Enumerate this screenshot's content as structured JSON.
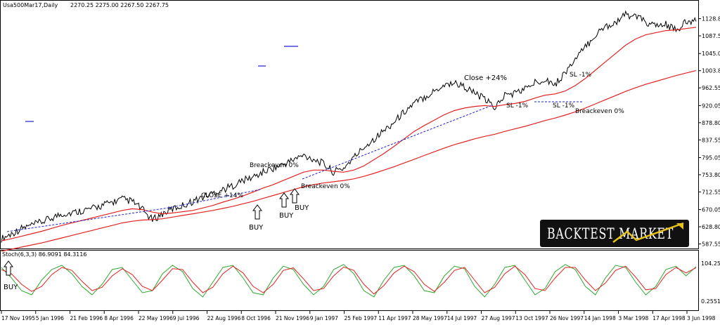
{
  "header": {
    "symbol": "Usa500Mar17,Daily",
    "ohlc": "2270.25 2275.00 2267.50 2267.75"
  },
  "stoch_label": "Stoch(6,3,3) 86.9091 84.3116",
  "logo": {
    "brand": "BACKTEST MARKET"
  },
  "colors": {
    "price": "#000000",
    "ma_fast": "#e32222",
    "ma_slow": "#e32222",
    "stoch_main": "#2ea82e",
    "stoch_signal": "#e32222",
    "trendline": "#1f1fd6",
    "logo_bg": "#111111",
    "logo_accent": "#e8c21a"
  },
  "chart_data": [
    {
      "type": "line",
      "title": "Usa500Mar17,Daily",
      "y_axis": {
        "ticks": [
          "1128.80",
          "1087.55",
          "1045.05",
          "1003.80",
          "962.55",
          "920.05",
          "878.80",
          "837.55",
          "795.05",
          "753.80",
          "712.55",
          "670.05",
          "628.80",
          "587.55"
        ],
        "ylim": [
          580,
          1150
        ]
      },
      "x_axis": {
        "ticks": [
          "17 Nov 1995",
          "5 Jan 1996",
          "21 Feb 1996",
          "8 Apr 1996",
          "22 May 1996",
          "9 Jul 1996",
          "22 Aug 1996",
          "8 Oct 1996",
          "21 Nov 1996",
          "9 Jan 1997",
          "25 Feb 1997",
          "11 Apr 1997",
          "28 May 1997",
          "14 Jul 1997",
          "27 Aug 1997",
          "13 Oct 1997",
          "26 Nov 1997",
          "14 Jan 1998",
          "3 Mar 1998",
          "17 Apr 1998",
          "3 Jun 1998"
        ]
      },
      "series": [
        {
          "values": [
            600,
            612,
            625,
            632,
            640,
            650,
            660,
            662,
            668,
            672,
            680,
            688,
            695,
            690,
            670,
            645,
            660,
            672,
            680,
            690,
            700,
            710,
            718,
            728,
            740,
            748,
            760,
            770,
            778,
            790,
            800,
            792,
            780,
            760,
            770,
            795,
            820,
            840,
            860,
            880,
            905,
            925,
            940,
            955,
            970,
            975,
            965,
            950,
            935,
            915,
            945,
            950,
            960,
            975,
            985,
            970,
            1000,
            1030,
            1060,
            1090,
            1110,
            1120,
            1138,
            1135,
            1120,
            1110,
            1115,
            1100,
            1120,
            1122
          ]
        },
        {
          "values": [
            595,
            600,
            606,
            612,
            618,
            625,
            632,
            638,
            644,
            650,
            656,
            662,
            668,
            672,
            670,
            664,
            660,
            662,
            665,
            668,
            674,
            680,
            688,
            695,
            703,
            712,
            722,
            730,
            740,
            750,
            760,
            765,
            765,
            762,
            760,
            765,
            775,
            790,
            805,
            822,
            840,
            858,
            872,
            885,
            898,
            908,
            914,
            918,
            920,
            918,
            922,
            925,
            930,
            938,
            945,
            948,
            955,
            968,
            985,
            1005,
            1025,
            1045,
            1065,
            1080,
            1090,
            1095,
            1100,
            1102,
            1105,
            1108
          ]
        },
        {
          "values": [
            570,
            575,
            580,
            585,
            590,
            596,
            602,
            608,
            614,
            620,
            626,
            632,
            638,
            642,
            645,
            646,
            648,
            652,
            656,
            660,
            664,
            668,
            673,
            678,
            684,
            690,
            697,
            704,
            711,
            718,
            725,
            730,
            734,
            737,
            740,
            744,
            750,
            757,
            765,
            773,
            782,
            791,
            800,
            809,
            818,
            826,
            833,
            840,
            846,
            851,
            858,
            864,
            870,
            877,
            884,
            890,
            897,
            905,
            914,
            924,
            934,
            944,
            954,
            963,
            971,
            978,
            985,
            992,
            998,
            1004
          ]
        }
      ]
    },
    {
      "type": "line",
      "title": "Stoch(6,3,3) 86.9091 84.3116",
      "y_axis": {
        "ticks": [
          "104.2555",
          "0.2551"
        ]
      },
      "series": [
        {
          "values": [
            85,
            60,
            30,
            20,
            55,
            80,
            90,
            70,
            40,
            20,
            45,
            80,
            85,
            55,
            25,
            30,
            70,
            90,
            75,
            35,
            15,
            50,
            85,
            90,
            60,
            25,
            20,
            60,
            88,
            80,
            45,
            20,
            40,
            80,
            92,
            70,
            30,
            15,
            55,
            85,
            90,
            65,
            30,
            25,
            65,
            88,
            82,
            40,
            15,
            45,
            85,
            90,
            55,
            20,
            35,
            75,
            92,
            80,
            40,
            20,
            60,
            90,
            85,
            50,
            20,
            40,
            80,
            88,
            65,
            86.9091
          ]
        },
        {
          "values": [
            80,
            70,
            45,
            28,
            40,
            68,
            85,
            78,
            52,
            30,
            38,
            65,
            82,
            68,
            40,
            30,
            55,
            82,
            80,
            50,
            25,
            38,
            70,
            88,
            72,
            40,
            25,
            45,
            78,
            84,
            58,
            30,
            35,
            65,
            86,
            78,
            45,
            22,
            42,
            72,
            88,
            75,
            45,
            28,
            50,
            78,
            85,
            55,
            25,
            38,
            70,
            88,
            68,
            35,
            30,
            60,
            85,
            85,
            55,
            30,
            48,
            78,
            88,
            62,
            32,
            35,
            68,
            85,
            72,
            84.3116
          ]
        }
      ]
    }
  ],
  "annotations": {
    "close14": "CLOSE +14%",
    "close24": "Close +24%",
    "be1": "Breackeven 0%",
    "be2": "Breackeven 0%",
    "be3": "Breackeven 0%",
    "sl1": "SL -1%",
    "sl2": "SL -1%",
    "sl3": "SL -1%",
    "buy": "BUY"
  }
}
